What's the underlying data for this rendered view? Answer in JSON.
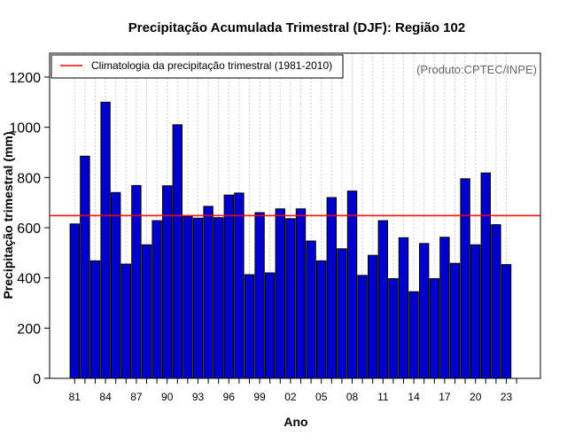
{
  "chart_data": {
    "type": "bar",
    "title": "Precipitação Acumulada Trimestral (DJF): Região 102",
    "xlabel": "Ano",
    "ylabel": "Precipitação trimestral (mm)",
    "ylim": [
      0,
      1300
    ],
    "yticks": [
      0,
      200,
      400,
      600,
      800,
      1000,
      1200
    ],
    "x_tick_labels": [
      "81",
      "84",
      "87",
      "90",
      "93",
      "96",
      "99",
      "02",
      "05",
      "08",
      "11",
      "14",
      "17",
      "20",
      "23"
    ],
    "categories": [
      "1981",
      "1982",
      "1983",
      "1984",
      "1985",
      "1986",
      "1987",
      "1988",
      "1989",
      "1990",
      "1991",
      "1992",
      "1993",
      "1994",
      "1995",
      "1996",
      "1997",
      "1998",
      "1999",
      "2000",
      "2001",
      "2002",
      "2003",
      "2004",
      "2005",
      "2006",
      "2007",
      "2008",
      "2009",
      "2010",
      "2011",
      "2012",
      "2013",
      "2014",
      "2015",
      "2016",
      "2017",
      "2018",
      "2019",
      "2020",
      "2021",
      "2022",
      "2023"
    ],
    "values": [
      615,
      885,
      468,
      1100,
      740,
      455,
      768,
      532,
      628,
      767,
      1010,
      645,
      638,
      685,
      640,
      730,
      738,
      413,
      660,
      420,
      675,
      636,
      675,
      547,
      468,
      720,
      516,
      746,
      410,
      490,
      628,
      397,
      560,
      345,
      537,
      397,
      562,
      458,
      795,
      532,
      818,
      612,
      453
    ],
    "bar_color": "#0000cd",
    "reference_line": {
      "value": 648,
      "label": "Climatologia da precipitação trimestral (1981-2010)",
      "color": "#ff0000"
    },
    "legend_position": "top-left",
    "grid": "vertical-dotted",
    "credit": "(Produto:CPTEC/INPE)"
  }
}
